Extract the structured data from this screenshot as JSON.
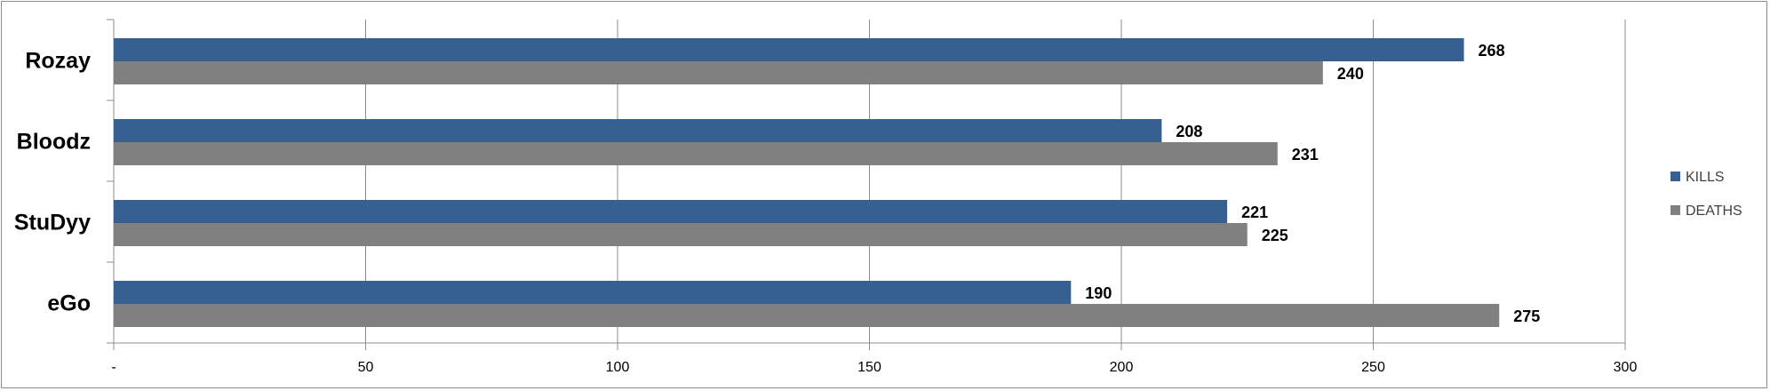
{
  "chart_data": {
    "type": "bar",
    "orientation": "horizontal",
    "categories": [
      "Rozay",
      "Bloodz",
      "StuDyy",
      "eGo"
    ],
    "series": [
      {
        "name": "KILLS",
        "color": "#376092",
        "values": [
          268,
          208,
          221,
          190
        ]
      },
      {
        "name": "DEATHS",
        "color": "#808080",
        "values": [
          240,
          231,
          225,
          275
        ]
      }
    ],
    "x_ticks": [
      {
        "value": 0,
        "label": "-"
      },
      {
        "value": 50,
        "label": "50"
      },
      {
        "value": 100,
        "label": "100"
      },
      {
        "value": 150,
        "label": "150"
      },
      {
        "value": 200,
        "label": "200"
      },
      {
        "value": 250,
        "label": "250"
      },
      {
        "value": 300,
        "label": "300"
      }
    ],
    "xlim": [
      0,
      300
    ],
    "grid": true,
    "legend_position": "right"
  }
}
